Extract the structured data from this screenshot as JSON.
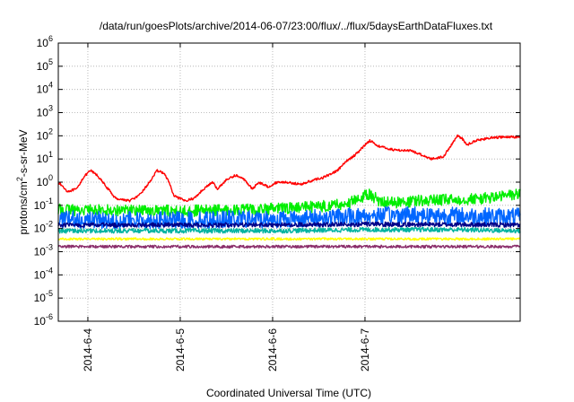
{
  "chart_data": {
    "type": "line",
    "title": "/data/run/goesPlots/archive/2014-06-07/23:00/flux/../flux/5daysEarthDataFluxes.txt",
    "xlabel": "Coordinated Universal Time (UTC)",
    "ylabel": "protons/cm²-s-sr-MeV",
    "ylabel_parts": {
      "pre": "protons/cm",
      "sup": "2",
      "post": "-s-sr-MeV"
    },
    "y_scale": "log",
    "ylim_exponents": [
      -6,
      6
    ],
    "y_ticks": [
      {
        "base": "10",
        "exp": "6"
      },
      {
        "base": "10",
        "exp": "5"
      },
      {
        "base": "10",
        "exp": "4"
      },
      {
        "base": "10",
        "exp": "3"
      },
      {
        "base": "10",
        "exp": "2"
      },
      {
        "base": "10",
        "exp": "1"
      },
      {
        "base": "10",
        "exp": "0"
      },
      {
        "base": "10",
        "exp": "-1"
      },
      {
        "base": "10",
        "exp": "-2"
      },
      {
        "base": "10",
        "exp": "-3"
      },
      {
        "base": "10",
        "exp": "-4"
      },
      {
        "base": "10",
        "exp": "-5"
      },
      {
        "base": "10",
        "exp": "-6"
      }
    ],
    "x_range_days": [
      -0.32,
      4.68
    ],
    "x_ticks": [
      {
        "label": "2014-6-4",
        "day": 0
      },
      {
        "label": "2014-6-5",
        "day": 1
      },
      {
        "label": "2014-6-6",
        "day": 2
      },
      {
        "label": "2014-6-7",
        "day": 3
      }
    ],
    "grid": true,
    "legend": "none",
    "series": [
      {
        "color": "#ff0000",
        "noise": 0.05,
        "points": [
          [
            -0.32,
            0.0
          ],
          [
            -0.22,
            -0.4
          ],
          [
            -0.12,
            -0.3
          ],
          [
            -0.05,
            0.2
          ],
          [
            0.03,
            0.5
          ],
          [
            0.1,
            0.3
          ],
          [
            0.2,
            -0.2
          ],
          [
            0.3,
            -0.7
          ],
          [
            0.45,
            -0.8
          ],
          [
            0.55,
            -0.6
          ],
          [
            0.65,
            -0.1
          ],
          [
            0.75,
            0.5
          ],
          [
            0.82,
            0.4
          ],
          [
            0.88,
            0.0
          ],
          [
            0.93,
            -0.6
          ],
          [
            1.05,
            -0.8
          ],
          [
            1.15,
            -0.7
          ],
          [
            1.25,
            -0.3
          ],
          [
            1.35,
            0.0
          ],
          [
            1.4,
            -0.3
          ],
          [
            1.5,
            0.1
          ],
          [
            1.6,
            0.3
          ],
          [
            1.7,
            0.1
          ],
          [
            1.78,
            -0.3
          ],
          [
            1.85,
            0.0
          ],
          [
            1.95,
            -0.2
          ],
          [
            2.05,
            0.0
          ],
          [
            2.15,
            0.0
          ],
          [
            2.3,
            -0.1
          ],
          [
            2.45,
            0.1
          ],
          [
            2.55,
            0.2
          ],
          [
            2.65,
            0.4
          ],
          [
            2.7,
            0.5
          ],
          [
            2.8,
            0.9
          ],
          [
            2.9,
            1.2
          ],
          [
            3.0,
            1.6
          ],
          [
            3.05,
            1.8
          ],
          [
            3.15,
            1.55
          ],
          [
            3.3,
            1.4
          ],
          [
            3.5,
            1.35
          ],
          [
            3.6,
            1.2
          ],
          [
            3.72,
            1.0
          ],
          [
            3.78,
            1.05
          ],
          [
            3.85,
            1.1
          ],
          [
            3.9,
            1.4
          ],
          [
            4.0,
            2.0
          ],
          [
            4.05,
            1.9
          ],
          [
            4.1,
            1.6
          ],
          [
            4.2,
            1.8
          ],
          [
            4.35,
            1.9
          ],
          [
            4.5,
            1.95
          ],
          [
            4.68,
            1.95
          ]
        ]
      },
      {
        "color": "#00ee00",
        "noise": 0.25,
        "points": [
          [
            -0.32,
            -1.2
          ],
          [
            0.5,
            -1.2
          ],
          [
            1.0,
            -1.25
          ],
          [
            1.5,
            -1.2
          ],
          [
            2.0,
            -1.15
          ],
          [
            2.5,
            -1.05
          ],
          [
            2.8,
            -0.95
          ],
          [
            2.95,
            -0.7
          ],
          [
            3.05,
            -0.5
          ],
          [
            3.15,
            -0.8
          ],
          [
            3.4,
            -0.9
          ],
          [
            3.6,
            -0.8
          ],
          [
            4.0,
            -0.75
          ],
          [
            4.3,
            -0.7
          ],
          [
            4.68,
            -0.5
          ]
        ]
      },
      {
        "color": "#0066ff",
        "noise": 0.38,
        "points": [
          [
            -0.32,
            -1.6
          ],
          [
            0.5,
            -1.65
          ],
          [
            1.0,
            -1.65
          ],
          [
            1.5,
            -1.6
          ],
          [
            2.0,
            -1.6
          ],
          [
            2.5,
            -1.55
          ],
          [
            3.0,
            -1.45
          ],
          [
            3.5,
            -1.4
          ],
          [
            4.0,
            -1.45
          ],
          [
            4.68,
            -1.5
          ]
        ]
      },
      {
        "color": "#000088",
        "noise": 0.1,
        "points": [
          [
            -0.32,
            -1.85
          ],
          [
            1.0,
            -1.85
          ],
          [
            2.0,
            -1.85
          ],
          [
            3.0,
            -1.82
          ],
          [
            4.0,
            -1.83
          ],
          [
            4.68,
            -1.85
          ]
        ]
      },
      {
        "color": "#00b3a0",
        "noise": 0.1,
        "points": [
          [
            -0.32,
            -2.1
          ],
          [
            1.0,
            -2.1
          ],
          [
            2.0,
            -2.1
          ],
          [
            3.0,
            -2.05
          ],
          [
            4.0,
            -2.05
          ],
          [
            4.68,
            -2.1
          ]
        ]
      },
      {
        "color": "#ffff00",
        "noise": 0.05,
        "points": [
          [
            -0.32,
            -2.45
          ],
          [
            1.0,
            -2.45
          ],
          [
            2.0,
            -2.45
          ],
          [
            3.0,
            -2.45
          ],
          [
            4.0,
            -2.45
          ],
          [
            4.68,
            -2.45
          ]
        ]
      },
      {
        "color": "#8b2f6b",
        "noise": 0.06,
        "points": [
          [
            -0.32,
            -2.78
          ],
          [
            1.0,
            -2.78
          ],
          [
            2.0,
            -2.78
          ],
          [
            3.0,
            -2.78
          ],
          [
            4.0,
            -2.78
          ],
          [
            4.68,
            -2.78
          ]
        ]
      }
    ]
  }
}
